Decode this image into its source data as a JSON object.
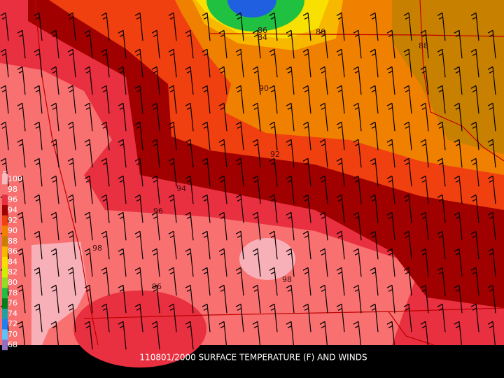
{
  "title": "110801/2000 SURFACE TEMPERATURE (F) AND WINDS",
  "legend": {
    "unit": "F",
    "levels": [
      {
        "label": "100",
        "color": "#f8b8c0"
      },
      {
        "label": "98",
        "color": "#f87070"
      },
      {
        "label": "96",
        "color": "#e83040"
      },
      {
        "label": "94",
        "color": "#a00000"
      },
      {
        "label": "92",
        "color": "#f04010"
      },
      {
        "label": "90",
        "color": "#f08000"
      },
      {
        "label": "88",
        "color": "#c88000"
      },
      {
        "label": "86",
        "color": "#f8b800"
      },
      {
        "label": "84",
        "color": "#f8e000"
      },
      {
        "label": "82",
        "color": "#d0f000"
      },
      {
        "label": "80",
        "color": "#90e020"
      },
      {
        "label": "78",
        "color": "#20c040"
      },
      {
        "label": "76",
        "color": "#008020"
      },
      {
        "label": "74",
        "color": "#20a0a0"
      },
      {
        "label": "72",
        "color": "#2080f0"
      },
      {
        "label": "70",
        "color": "#60c0f8"
      },
      {
        "label": "68",
        "color": "#9070c0"
      }
    ]
  },
  "contour_labels": [
    "84",
    "86",
    "86",
    "88",
    "90",
    "92",
    "94",
    "96",
    "96",
    "98",
    "98"
  ]
}
